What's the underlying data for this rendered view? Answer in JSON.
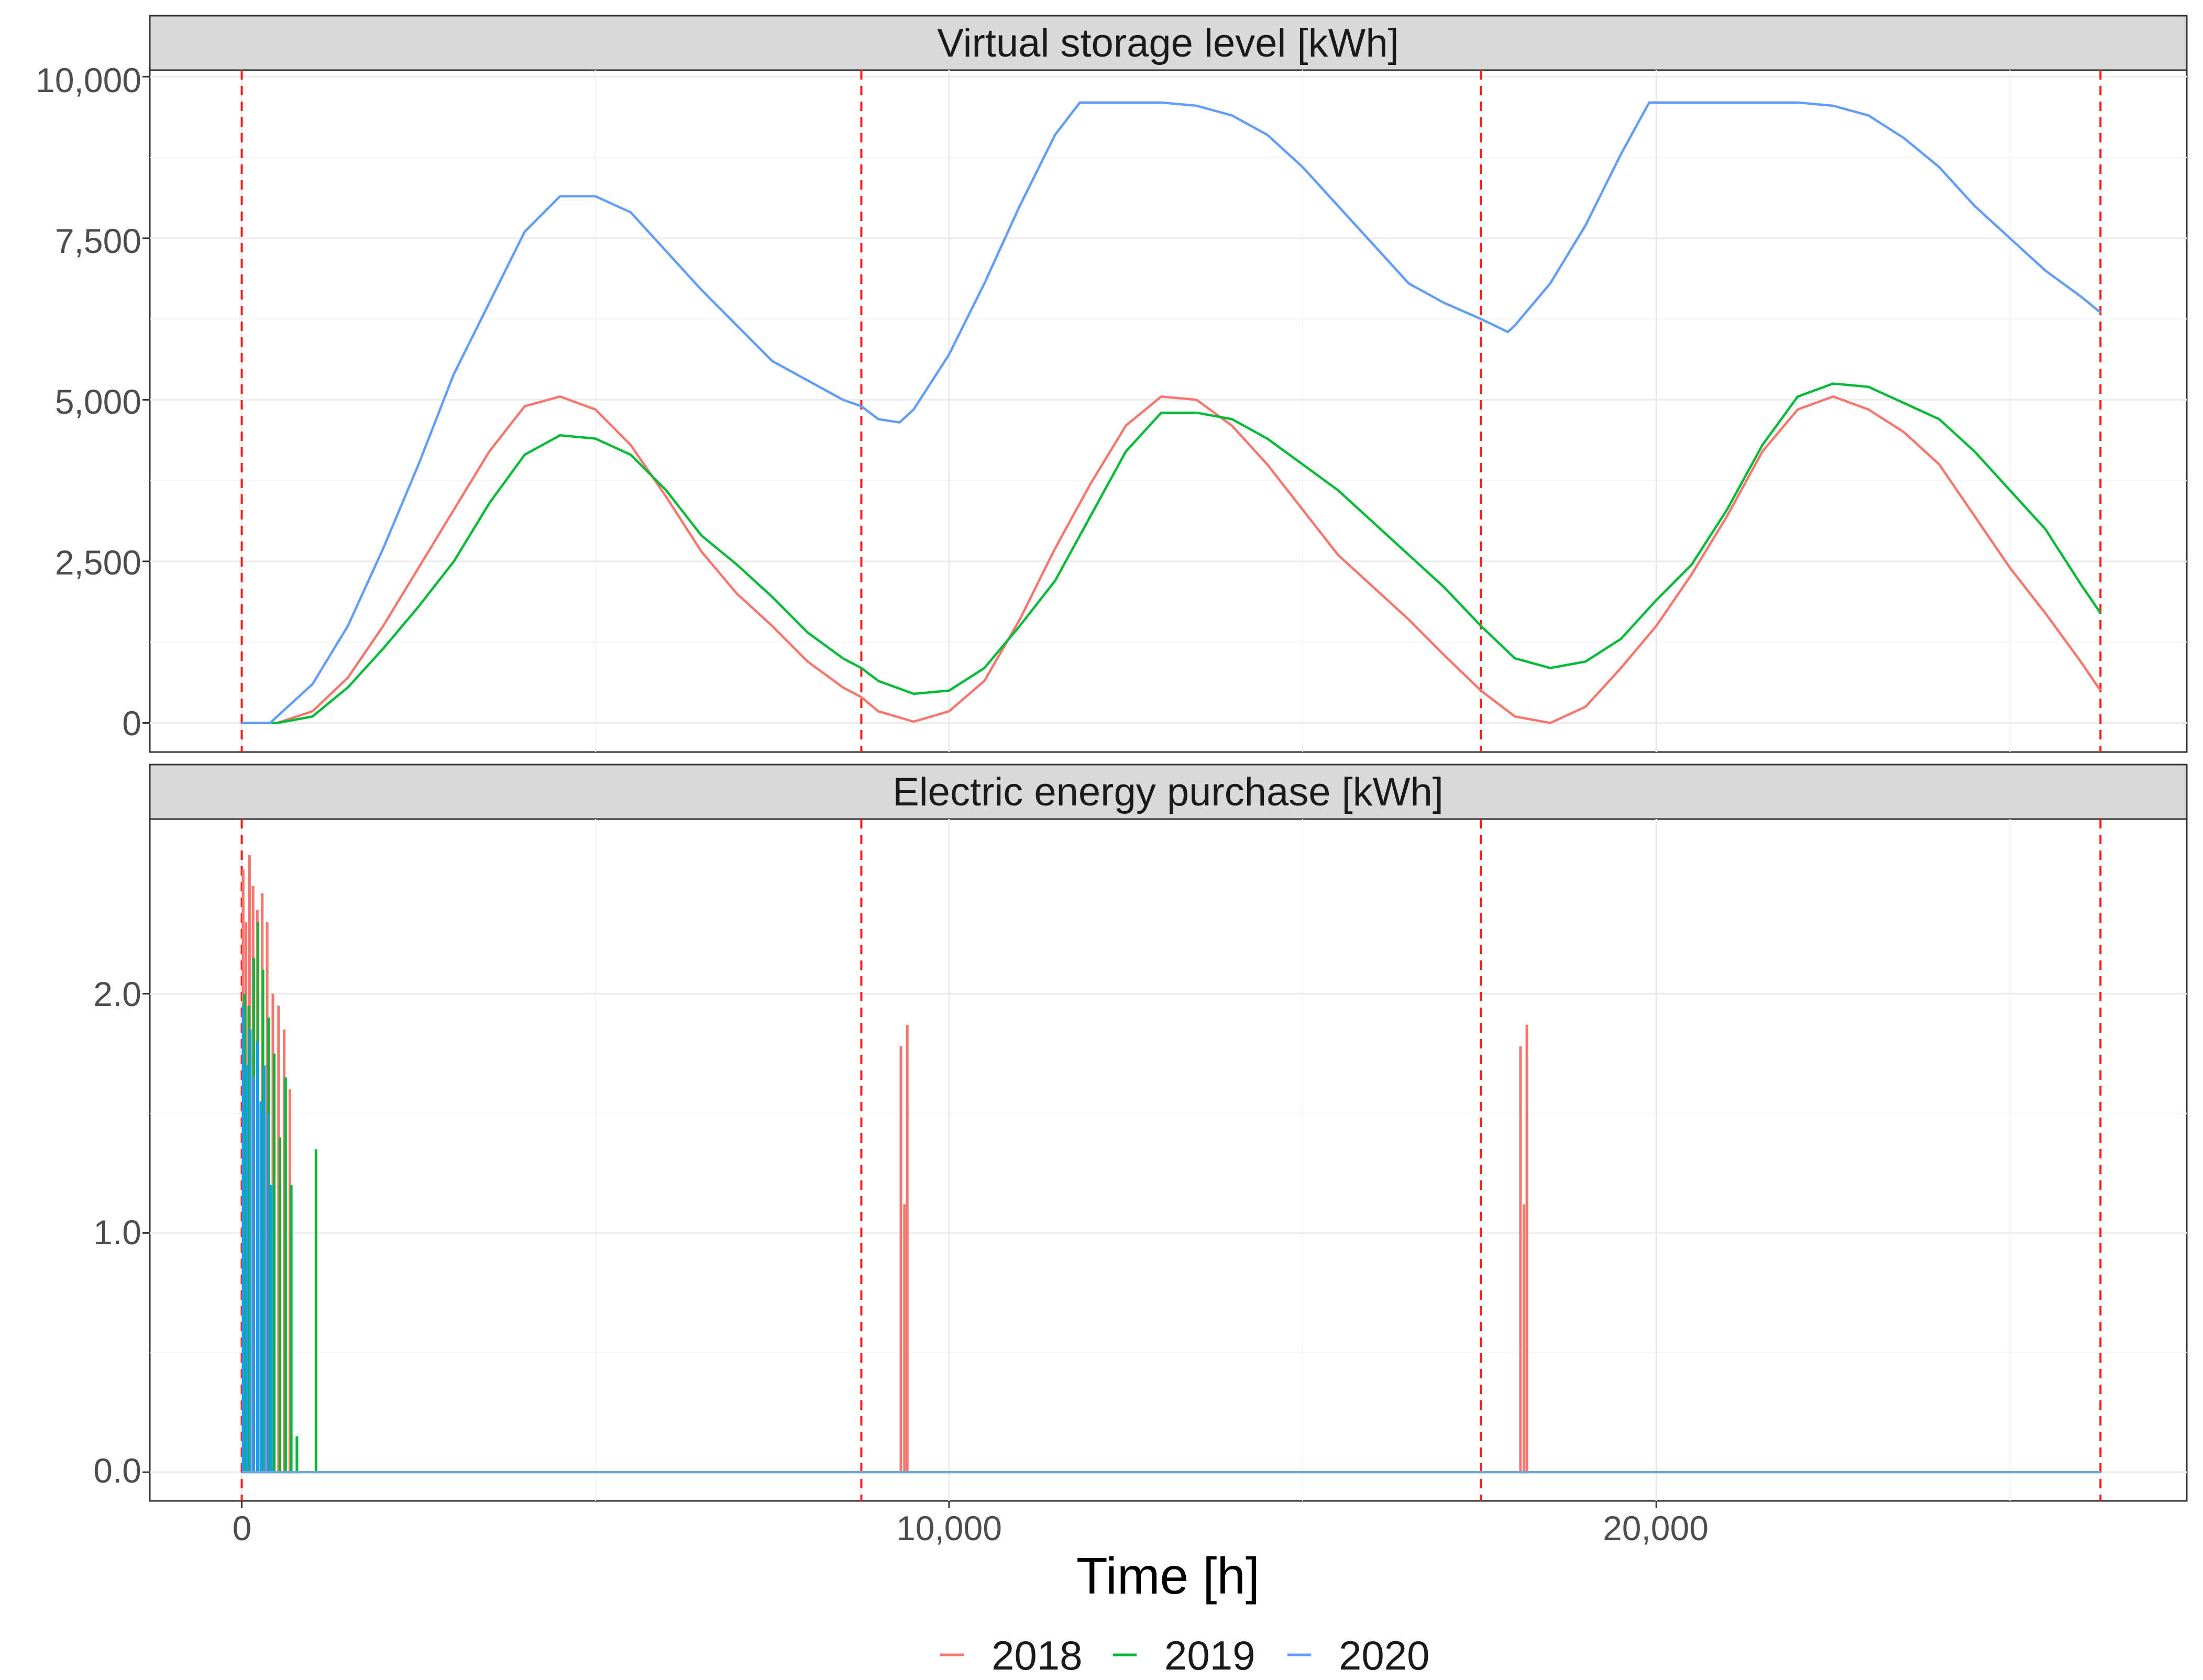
{
  "chart_data": [
    {
      "type": "line",
      "title": "Virtual storage level [kWh]",
      "xlabel": "Time [h]",
      "ylabel": "",
      "xlim": [
        -1300,
        27500
      ],
      "ylim": [
        -450,
        10100
      ],
      "yticks": [
        0,
        2500,
        5000,
        7500,
        10000
      ],
      "ytick_labels": [
        "0",
        "2,500",
        "5,000",
        "7,500",
        "10,000"
      ],
      "vlines": [
        0,
        8760,
        17520,
        26280
      ],
      "series": [
        {
          "name": "2018",
          "color": "#F8766D",
          "x": [
            0,
            500,
            1000,
            1500,
            2000,
            2500,
            3000,
            3500,
            4000,
            4500,
            5000,
            5500,
            6000,
            6500,
            7000,
            7500,
            8000,
            8500,
            8760,
            9000,
            9500,
            10000,
            10500,
            11000,
            11500,
            12000,
            12500,
            13000,
            13500,
            14000,
            14500,
            15000,
            15500,
            16000,
            16500,
            17000,
            17520,
            18000,
            18500,
            19000,
            19500,
            20000,
            20500,
            21000,
            21500,
            22000,
            22500,
            23000,
            23500,
            24000,
            24500,
            25000,
            25500,
            26000,
            26280
          ],
          "y": [
            0,
            0,
            180,
            700,
            1500,
            2400,
            3300,
            4200,
            4900,
            5050,
            4850,
            4300,
            3500,
            2650,
            2000,
            1500,
            950,
            550,
            400,
            180,
            20,
            180,
            650,
            1600,
            2700,
            3700,
            4600,
            5050,
            5000,
            4600,
            4000,
            3300,
            2600,
            2100,
            1600,
            1050,
            500,
            100,
            0,
            250,
            850,
            1500,
            2300,
            3200,
            4200,
            4850,
            5050,
            4850,
            4500,
            4000,
            3200,
            2400,
            1700,
            950,
            500
          ]
        },
        {
          "name": "2019",
          "color": "#00BA38",
          "x": [
            0,
            500,
            1000,
            1500,
            2000,
            2500,
            3000,
            3500,
            4000,
            4500,
            5000,
            5500,
            6000,
            6500,
            7000,
            7500,
            8000,
            8500,
            8760,
            9000,
            9500,
            10000,
            10500,
            11000,
            11500,
            12000,
            12500,
            13000,
            13500,
            14000,
            14500,
            15000,
            15500,
            16000,
            16500,
            17000,
            17520,
            18000,
            18500,
            19000,
            19500,
            20000,
            20500,
            21000,
            21500,
            22000,
            22500,
            23000,
            23500,
            24000,
            24500,
            25000,
            25500,
            26000,
            26280
          ],
          "y": [
            0,
            0,
            100,
            550,
            1150,
            1800,
            2500,
            3400,
            4150,
            4450,
            4400,
            4150,
            3600,
            2900,
            2450,
            1950,
            1400,
            1000,
            850,
            650,
            450,
            500,
            850,
            1500,
            2200,
            3200,
            4200,
            4800,
            4800,
            4700,
            4400,
            4000,
            3600,
            3100,
            2600,
            2100,
            1500,
            1000,
            850,
            950,
            1300,
            1900,
            2450,
            3300,
            4300,
            5050,
            5250,
            5200,
            4950,
            4700,
            4200,
            3600,
            3000,
            2150,
            1700
          ]
        },
        {
          "name": "2020",
          "color": "#619CFF",
          "x": [
            0,
            400,
            1000,
            1500,
            2000,
            2500,
            3000,
            3500,
            4000,
            4500,
            5000,
            5500,
            6000,
            6500,
            7000,
            7500,
            8000,
            8500,
            8760,
            9000,
            9300,
            9500,
            10000,
            10500,
            11000,
            11500,
            11850,
            12500,
            13000,
            13500,
            14000,
            14500,
            15000,
            15500,
            16000,
            16500,
            17000,
            17520,
            17900,
            18000,
            18500,
            19000,
            19500,
            19900,
            20500,
            21000,
            21500,
            22000,
            22500,
            23000,
            23500,
            24000,
            24500,
            25000,
            25500,
            26000,
            26280
          ],
          "y": [
            0,
            0,
            600,
            1500,
            2700,
            4000,
            5400,
            6500,
            7600,
            8150,
            8150,
            7900,
            7300,
            6700,
            6150,
            5600,
            5300,
            5000,
            4900,
            4700,
            4650,
            4850,
            5700,
            6800,
            8000,
            9100,
            9600,
            9600,
            9600,
            9550,
            9400,
            9100,
            8600,
            8000,
            7400,
            6800,
            6500,
            6250,
            6050,
            6150,
            6800,
            7700,
            8800,
            9600,
            9600,
            9600,
            9600,
            9600,
            9550,
            9400,
            9050,
            8600,
            8000,
            7500,
            7000,
            6600,
            6350
          ]
        }
      ]
    },
    {
      "type": "line",
      "title": "Electric energy purchase [kWh]",
      "xlabel": "Time [h]",
      "ylabel": "",
      "xlim": [
        -1300,
        27500
      ],
      "ylim": [
        -0.12,
        2.73
      ],
      "xticks": [
        0,
        10000,
        20000
      ],
      "xtick_labels": [
        "0",
        "10,000",
        "20,000"
      ],
      "yticks": [
        0.0,
        1.0,
        2.0
      ],
      "ytick_labels": [
        "0.0",
        "1.0",
        "2.0"
      ],
      "vlines": [
        0,
        8760,
        17520,
        26280
      ],
      "series": [
        {
          "name": "2018",
          "color": "#F8766D",
          "spikes": [
            [
              20,
              2.52
            ],
            [
              60,
              2.3
            ],
            [
              110,
              2.58
            ],
            [
              160,
              2.45
            ],
            [
              220,
              2.35
            ],
            [
              290,
              2.42
            ],
            [
              360,
              2.3
            ],
            [
              440,
              2.0
            ],
            [
              520,
              1.95
            ],
            [
              600,
              1.85
            ],
            [
              680,
              1.6
            ],
            [
              9320,
              1.78
            ],
            [
              9370,
              1.12
            ],
            [
              9410,
              1.87
            ],
            [
              18080,
              1.78
            ],
            [
              18130,
              1.12
            ],
            [
              18170,
              1.87
            ]
          ]
        },
        {
          "name": "2019",
          "color": "#00BA38",
          "spikes": [
            [
              40,
              2.0
            ],
            [
              100,
              1.95
            ],
            [
              170,
              2.15
            ],
            [
              230,
              2.3
            ],
            [
              300,
              2.1
            ],
            [
              380,
              1.9
            ],
            [
              460,
              1.75
            ],
            [
              540,
              1.4
            ],
            [
              620,
              1.65
            ],
            [
              700,
              1.2
            ],
            [
              780,
              0.15
            ],
            [
              1050,
              1.35
            ]
          ]
        },
        {
          "name": "2020",
          "color": "#1E9BF0",
          "spikes": [
            [
              20,
              1.95
            ],
            [
              70,
              1.7
            ],
            [
              120,
              1.85
            ],
            [
              170,
              1.65
            ],
            [
              220,
              1.8
            ],
            [
              270,
              1.55
            ],
            [
              320,
              1.7
            ],
            [
              370,
              1.5
            ],
            [
              420,
              1.2
            ]
          ]
        }
      ]
    }
  ],
  "legend": {
    "position": "bottom",
    "items": [
      {
        "label": "2018",
        "color": "#F8766D"
      },
      {
        "label": "2019",
        "color": "#00BA38"
      },
      {
        "label": "2020",
        "color": "#619CFF"
      }
    ]
  }
}
